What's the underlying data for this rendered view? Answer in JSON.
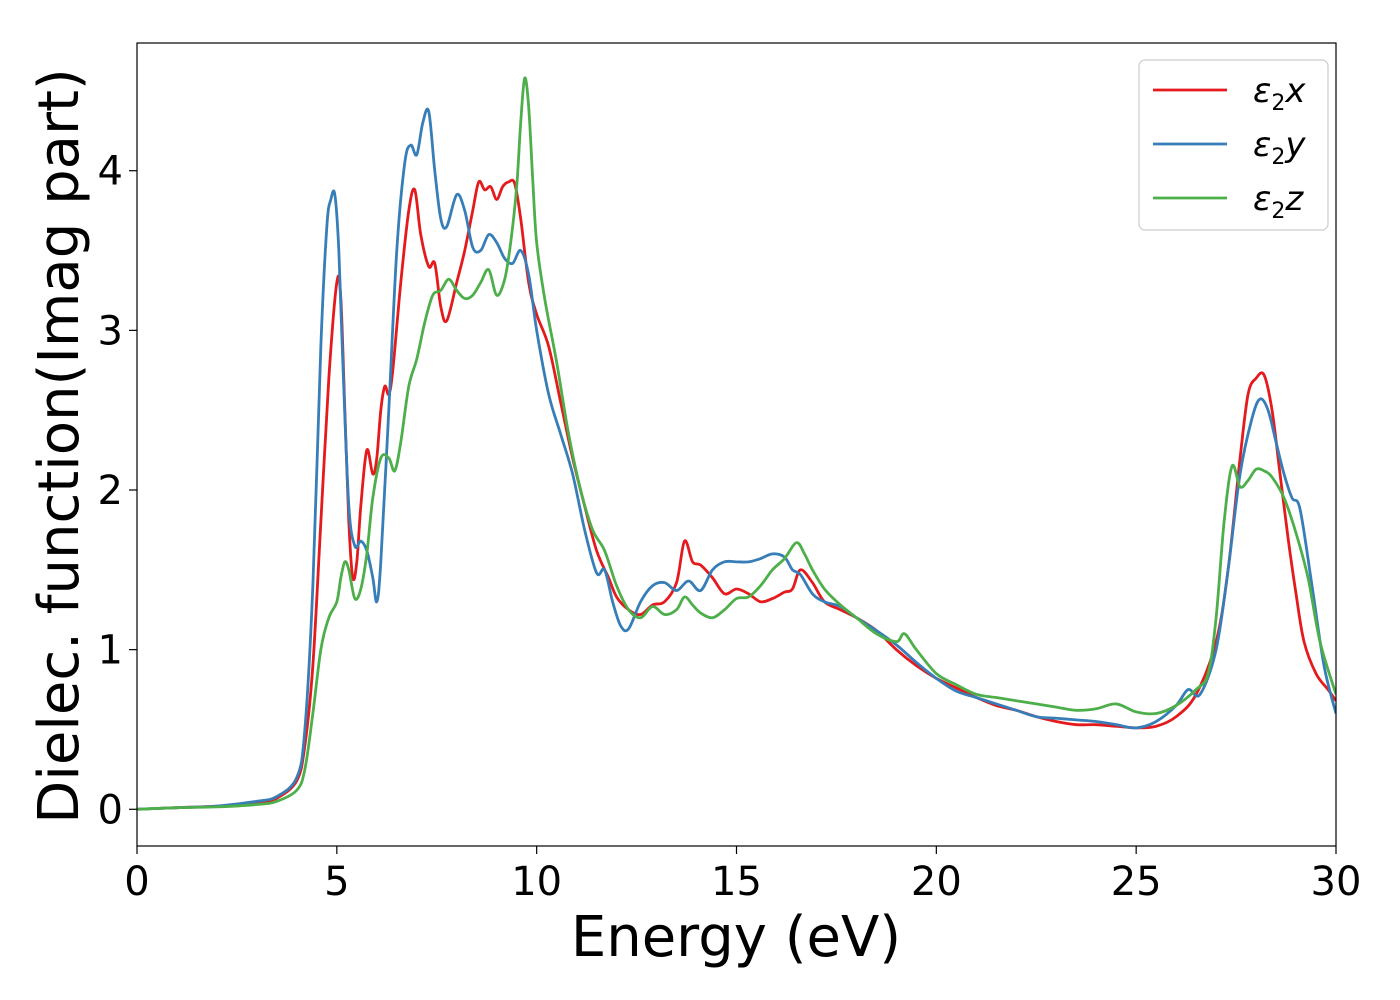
{
  "chart_data": {
    "type": "line",
    "xlabel": "Energy (eV)",
    "ylabel": "Dielec. function(Imag part)",
    "xlim": [
      0,
      30
    ],
    "ylim": [
      -0.23,
      4.8
    ],
    "xticks": [
      0,
      5,
      10,
      15,
      20,
      25,
      30
    ],
    "yticks": [
      0,
      1,
      2,
      3,
      4
    ],
    "grid": false,
    "legend_position": "top-right",
    "series": [
      {
        "name": "ε₂x",
        "legend": {
          "base": "ε",
          "sub": "2",
          "axis": "x"
        },
        "color": "#e41a1c",
        "x": [
          0,
          1,
          2,
          3,
          3.5,
          4,
          4.2,
          4.4,
          4.6,
          4.8,
          5.0,
          5.1,
          5.2,
          5.3,
          5.4,
          5.5,
          5.6,
          5.75,
          5.9,
          6.0,
          6.1,
          6.2,
          6.3,
          6.4,
          6.6,
          6.8,
          6.95,
          7.1,
          7.3,
          7.45,
          7.6,
          7.75,
          8.0,
          8.2,
          8.4,
          8.55,
          8.7,
          8.85,
          9.0,
          9.15,
          9.3,
          9.45,
          9.6,
          9.8,
          10.0,
          10.3,
          10.6,
          10.9,
          11.2,
          11.5,
          11.8,
          12.0,
          12.3,
          12.6,
          12.9,
          13.2,
          13.5,
          13.7,
          13.9,
          14.1,
          14.4,
          14.7,
          15.0,
          15.3,
          15.6,
          15.9,
          16.2,
          16.4,
          16.6,
          16.9,
          17.2,
          17.6,
          18.0,
          18.5,
          19.0,
          19.5,
          20.0,
          20.5,
          21.0,
          21.5,
          22.0,
          22.5,
          23.0,
          23.5,
          24.0,
          24.5,
          25.0,
          25.5,
          26.0,
          26.5,
          27.0,
          27.3,
          27.6,
          27.8,
          28.0,
          28.2,
          28.4,
          28.6,
          28.8,
          29.0,
          29.2,
          29.5,
          29.8,
          30.0
        ],
        "y": [
          0.0,
          0.01,
          0.02,
          0.04,
          0.07,
          0.18,
          0.4,
          0.9,
          1.8,
          2.7,
          3.3,
          3.2,
          2.5,
          1.8,
          1.45,
          1.55,
          1.9,
          2.25,
          2.1,
          2.2,
          2.5,
          2.65,
          2.6,
          2.75,
          3.3,
          3.75,
          3.88,
          3.6,
          3.4,
          3.42,
          3.15,
          3.06,
          3.3,
          3.5,
          3.75,
          3.93,
          3.88,
          3.9,
          3.82,
          3.9,
          3.93,
          3.92,
          3.7,
          3.3,
          3.1,
          2.9,
          2.55,
          2.2,
          1.9,
          1.62,
          1.45,
          1.33,
          1.25,
          1.22,
          1.28,
          1.3,
          1.42,
          1.68,
          1.55,
          1.53,
          1.45,
          1.35,
          1.38,
          1.35,
          1.3,
          1.32,
          1.36,
          1.38,
          1.5,
          1.42,
          1.3,
          1.25,
          1.2,
          1.12,
          1.0,
          0.9,
          0.82,
          0.76,
          0.7,
          0.65,
          0.62,
          0.58,
          0.55,
          0.53,
          0.53,
          0.52,
          0.51,
          0.52,
          0.58,
          0.72,
          1.05,
          1.5,
          2.2,
          2.6,
          2.7,
          2.72,
          2.5,
          2.1,
          1.7,
          1.35,
          1.05,
          0.85,
          0.75,
          0.68
        ]
      },
      {
        "name": "ε₂y",
        "legend": {
          "base": "ε",
          "sub": "2",
          "axis": "y"
        },
        "color": "#377eb8",
        "x": [
          0,
          1,
          2,
          3,
          3.5,
          4,
          4.2,
          4.4,
          4.6,
          4.75,
          4.85,
          4.95,
          5.05,
          5.15,
          5.3,
          5.45,
          5.6,
          5.75,
          5.9,
          6.0,
          6.1,
          6.3,
          6.5,
          6.7,
          6.85,
          7.0,
          7.15,
          7.3,
          7.45,
          7.6,
          7.75,
          8.0,
          8.2,
          8.4,
          8.6,
          8.8,
          9.0,
          9.2,
          9.4,
          9.6,
          9.8,
          10.0,
          10.3,
          10.6,
          10.9,
          11.2,
          11.5,
          11.7,
          11.9,
          12.1,
          12.3,
          12.6,
          12.9,
          13.2,
          13.5,
          13.8,
          14.1,
          14.4,
          14.7,
          15.0,
          15.3,
          15.6,
          15.9,
          16.2,
          16.4,
          16.6,
          16.9,
          17.2,
          17.6,
          18.0,
          18.5,
          19.0,
          19.5,
          20.0,
          20.5,
          21.0,
          21.5,
          22.0,
          22.5,
          23.0,
          23.5,
          24.0,
          24.5,
          25.0,
          25.5,
          26.0,
          26.3,
          26.6,
          27.0,
          27.3,
          27.6,
          27.9,
          28.1,
          28.3,
          28.5,
          28.7,
          28.9,
          29.1,
          29.4,
          29.7,
          30.0
        ],
        "y": [
          0.0,
          0.01,
          0.02,
          0.05,
          0.08,
          0.2,
          0.5,
          1.4,
          2.9,
          3.65,
          3.82,
          3.85,
          3.5,
          2.8,
          1.9,
          1.65,
          1.68,
          1.62,
          1.45,
          1.3,
          1.55,
          2.5,
          3.5,
          4.05,
          4.16,
          4.1,
          4.3,
          4.37,
          4.0,
          3.7,
          3.65,
          3.85,
          3.75,
          3.52,
          3.5,
          3.6,
          3.55,
          3.45,
          3.42,
          3.5,
          3.35,
          3.0,
          2.6,
          2.35,
          2.1,
          1.75,
          1.48,
          1.5,
          1.3,
          1.15,
          1.13,
          1.3,
          1.4,
          1.42,
          1.37,
          1.43,
          1.37,
          1.5,
          1.55,
          1.55,
          1.55,
          1.57,
          1.6,
          1.58,
          1.5,
          1.47,
          1.35,
          1.3,
          1.27,
          1.2,
          1.12,
          1.03,
          0.92,
          0.82,
          0.74,
          0.7,
          0.66,
          0.62,
          0.58,
          0.57,
          0.56,
          0.55,
          0.53,
          0.51,
          0.55,
          0.65,
          0.75,
          0.72,
          1.0,
          1.5,
          2.1,
          2.45,
          2.57,
          2.5,
          2.3,
          2.1,
          1.95,
          1.88,
          1.4,
          0.9,
          0.6
        ]
      },
      {
        "name": "ε₂z",
        "legend": {
          "base": "ε",
          "sub": "2",
          "axis": "z"
        },
        "color": "#4daf4a",
        "x": [
          0,
          1,
          2,
          3,
          3.5,
          4,
          4.2,
          4.4,
          4.6,
          4.8,
          5.0,
          5.1,
          5.2,
          5.3,
          5.45,
          5.6,
          5.75,
          5.9,
          6.1,
          6.3,
          6.45,
          6.6,
          6.8,
          7.0,
          7.2,
          7.4,
          7.6,
          7.8,
          8.0,
          8.2,
          8.4,
          8.6,
          8.8,
          9.0,
          9.2,
          9.35,
          9.5,
          9.6,
          9.7,
          9.8,
          9.9,
          10.0,
          10.2,
          10.5,
          10.8,
          11.1,
          11.4,
          11.7,
          12.0,
          12.3,
          12.6,
          12.9,
          13.2,
          13.5,
          13.7,
          13.9,
          14.1,
          14.4,
          14.7,
          15.0,
          15.3,
          15.6,
          15.9,
          16.2,
          16.5,
          16.7,
          16.9,
          17.2,
          17.6,
          18.0,
          18.5,
          19.0,
          19.2,
          19.5,
          20.0,
          20.5,
          21.0,
          21.5,
          22.0,
          22.5,
          23.0,
          23.5,
          24.0,
          24.5,
          25.0,
          25.5,
          26.0,
          26.5,
          26.8,
          27.0,
          27.2,
          27.4,
          27.6,
          27.8,
          28.0,
          28.2,
          28.4,
          28.7,
          29.0,
          29.3,
          29.6,
          30.0
        ],
        "y": [
          0.0,
          0.01,
          0.015,
          0.03,
          0.05,
          0.12,
          0.25,
          0.6,
          1.0,
          1.2,
          1.3,
          1.45,
          1.55,
          1.5,
          1.32,
          1.38,
          1.6,
          1.95,
          2.2,
          2.2,
          2.12,
          2.3,
          2.65,
          2.82,
          3.05,
          3.22,
          3.25,
          3.32,
          3.25,
          3.2,
          3.22,
          3.3,
          3.38,
          3.22,
          3.32,
          3.55,
          3.9,
          4.3,
          4.58,
          4.4,
          3.95,
          3.55,
          3.2,
          2.8,
          2.35,
          2.0,
          1.75,
          1.62,
          1.4,
          1.25,
          1.2,
          1.27,
          1.22,
          1.25,
          1.33,
          1.28,
          1.23,
          1.2,
          1.25,
          1.32,
          1.33,
          1.4,
          1.5,
          1.57,
          1.67,
          1.6,
          1.5,
          1.38,
          1.28,
          1.2,
          1.1,
          1.05,
          1.1,
          1.0,
          0.85,
          0.78,
          0.72,
          0.7,
          0.68,
          0.66,
          0.64,
          0.62,
          0.63,
          0.66,
          0.61,
          0.6,
          0.65,
          0.75,
          0.85,
          1.2,
          1.8,
          2.15,
          2.02,
          2.06,
          2.13,
          2.12,
          2.08,
          1.95,
          1.73,
          1.45,
          1.05,
          0.72
        ]
      }
    ]
  }
}
